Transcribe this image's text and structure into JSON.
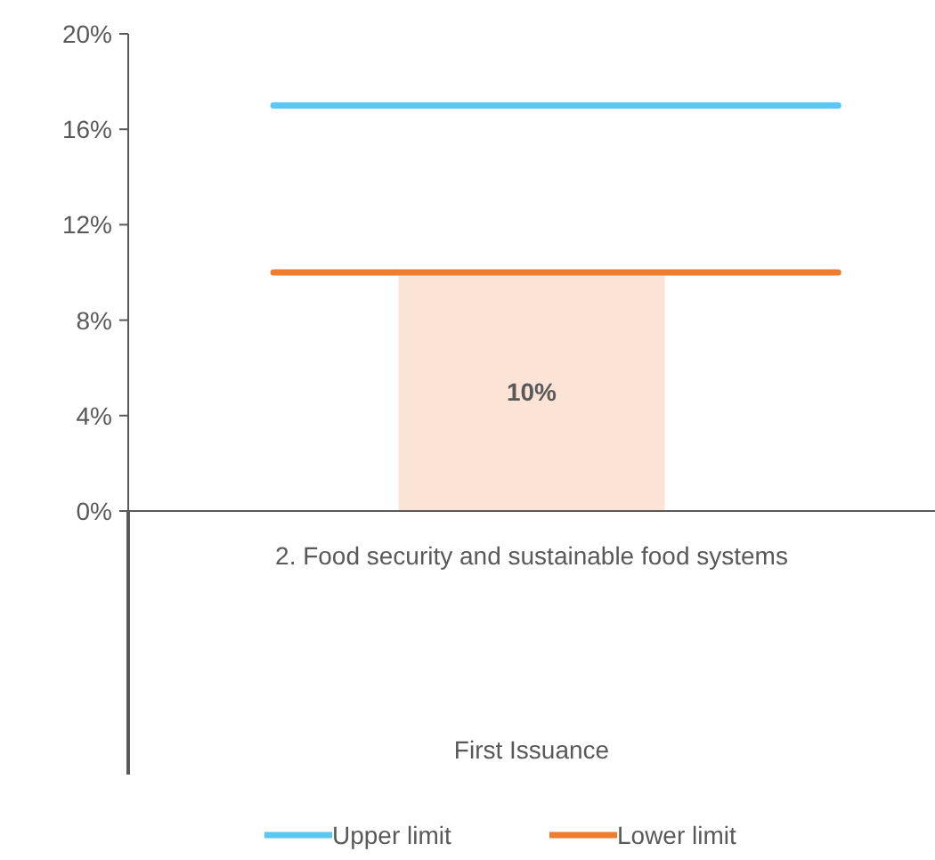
{
  "chart_data": {
    "type": "bar",
    "categories": [
      "2. Food security and sustainable food systems"
    ],
    "annotations": [
      "First Issuance"
    ],
    "values": [
      10
    ],
    "color": "#fbe3d5",
    "value_labels": [
      "10%"
    ],
    "ylim": [
      0,
      20
    ],
    "yticks": [
      {
        "value": 0,
        "label": "0%"
      },
      {
        "value": 4,
        "label": "4%"
      },
      {
        "value": 8,
        "label": "8%"
      },
      {
        "value": 12,
        "label": "12%"
      },
      {
        "value": 16,
        "label": "16%"
      },
      {
        "value": 20,
        "label": "20%"
      }
    ],
    "ref_lines": [
      {
        "axis": "y",
        "value": 17,
        "label": "Upper limit",
        "color": "#5bc8ef"
      },
      {
        "axis": "y",
        "value": 10,
        "label": "Lower limit",
        "color": "#ed7d31"
      }
    ],
    "grid": false,
    "legend": "bottom"
  }
}
